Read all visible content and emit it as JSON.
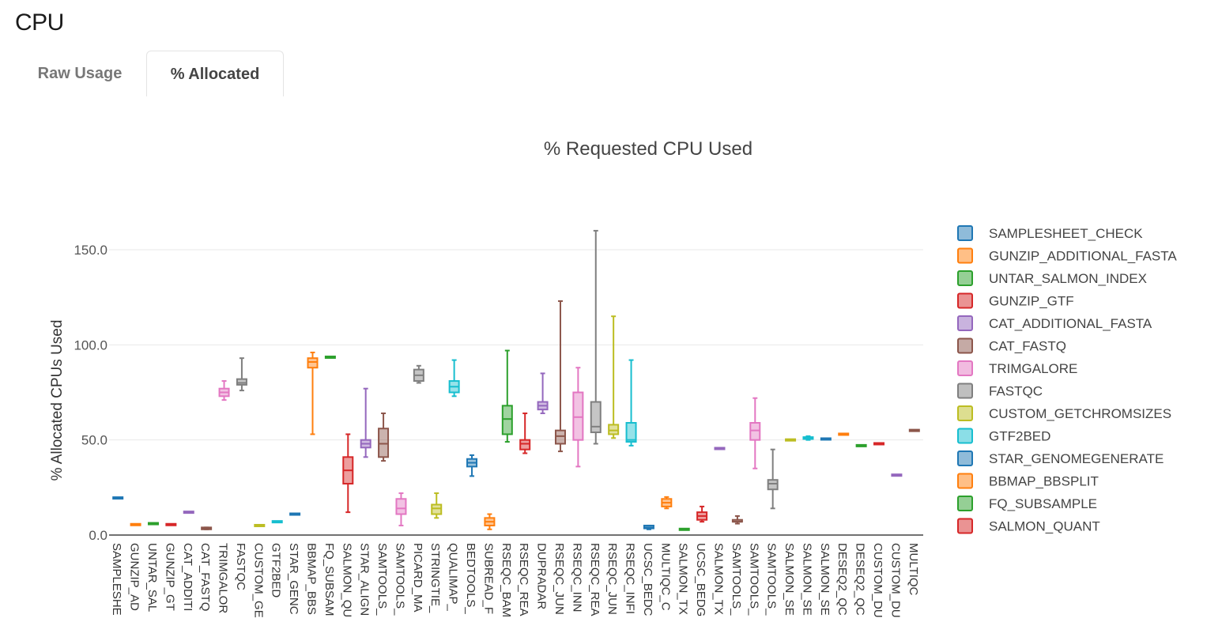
{
  "page": {
    "title": "CPU"
  },
  "tabs": [
    {
      "label": "Raw Usage",
      "active": false
    },
    {
      "label": "% Allocated",
      "active": true
    }
  ],
  "chart_data": {
    "type": "box",
    "title": "% Requested CPU Used",
    "ylabel": "% Allocated CPUs Used",
    "xlabel": "",
    "ylim": [
      0,
      160
    ],
    "yticks": [
      0.0,
      50.0,
      100.0,
      150.0
    ],
    "ytick_labels": [
      "0.0",
      "50.0",
      "100.0",
      "150.0"
    ],
    "grid": true,
    "legend_position": "right",
    "legend": [
      {
        "name": "SAMPLESHEET_CHECK",
        "color": "#1f77b4"
      },
      {
        "name": "GUNZIP_ADDITIONAL_FASTA",
        "color": "#ff7f0e"
      },
      {
        "name": "UNTAR_SALMON_INDEX",
        "color": "#2ca02c"
      },
      {
        "name": "GUNZIP_GTF",
        "color": "#d62728"
      },
      {
        "name": "CAT_ADDITIONAL_FASTA",
        "color": "#9467bd"
      },
      {
        "name": "CAT_FASTQ",
        "color": "#8c564b"
      },
      {
        "name": "TRIMGALORE",
        "color": "#e377c2"
      },
      {
        "name": "FASTQC",
        "color": "#7f7f7f"
      },
      {
        "name": "CUSTOM_GETCHROMSIZES",
        "color": "#bcbd22"
      },
      {
        "name": "GTF2BED",
        "color": "#17becf"
      },
      {
        "name": "STAR_GENOMEGENERATE",
        "color": "#1f77b4"
      },
      {
        "name": "BBMAP_BBSPLIT",
        "color": "#ff7f0e"
      },
      {
        "name": "FQ_SUBSAMPLE",
        "color": "#2ca02c"
      },
      {
        "name": "SALMON_QUANT",
        "color": "#d62728"
      }
    ],
    "boxes": [
      {
        "label": "SAMPLESHE",
        "color": "#1f77b4",
        "min": 19.5,
        "q1": 19.5,
        "median": 19.5,
        "q3": 19.5,
        "max": 19.5
      },
      {
        "label": "GUNZIP_AD",
        "color": "#ff7f0e",
        "min": 5.5,
        "q1": 5.5,
        "median": 5.5,
        "q3": 5.5,
        "max": 5.5
      },
      {
        "label": "UNTAR_SAL",
        "color": "#2ca02c",
        "min": 6,
        "q1": 6,
        "median": 6,
        "q3": 6,
        "max": 6
      },
      {
        "label": "GUNZIP_GT",
        "color": "#d62728",
        "min": 5.5,
        "q1": 5.5,
        "median": 5.5,
        "q3": 5.5,
        "max": 5.5
      },
      {
        "label": "CAT_ADDITI",
        "color": "#9467bd",
        "min": 12,
        "q1": 12,
        "median": 12,
        "q3": 12,
        "max": 12
      },
      {
        "label": "CAT_FASTQ",
        "color": "#8c564b",
        "min": 3,
        "q1": 3,
        "median": 3.5,
        "q3": 4,
        "max": 4
      },
      {
        "label": "TRIMGALOR",
        "color": "#e377c2",
        "min": 71,
        "q1": 73,
        "median": 75,
        "q3": 77,
        "max": 81
      },
      {
        "label": "FASTQC",
        "color": "#7f7f7f",
        "min": 76,
        "q1": 79,
        "median": 80,
        "q3": 82,
        "max": 93
      },
      {
        "label": "CUSTOM_GE",
        "color": "#bcbd22",
        "min": 5,
        "q1": 5,
        "median": 5,
        "q3": 5,
        "max": 5
      },
      {
        "label": "GTF2BED",
        "color": "#17becf",
        "min": 7,
        "q1": 7,
        "median": 7,
        "q3": 7,
        "max": 7
      },
      {
        "label": "STAR_GENC",
        "color": "#1f77b4",
        "min": 11,
        "q1": 11,
        "median": 11,
        "q3": 11,
        "max": 11
      },
      {
        "label": "BBMAP_BBS",
        "color": "#ff7f0e",
        "min": 53,
        "q1": 88,
        "median": 91,
        "q3": 93,
        "max": 96
      },
      {
        "label": "FQ_SUBSAM",
        "color": "#2ca02c",
        "min": 93.5,
        "q1": 93.5,
        "median": 93.5,
        "q3": 93.5,
        "max": 93.5
      },
      {
        "label": "SALMON_QU",
        "color": "#d62728",
        "min": 12,
        "q1": 27,
        "median": 34,
        "q3": 41,
        "max": 53
      },
      {
        "label": "STAR_ALIGN",
        "color": "#9467bd",
        "min": 41,
        "q1": 46,
        "median": 48,
        "q3": 50,
        "max": 77
      },
      {
        "label": "SAMTOOLS_",
        "color": "#8c564b",
        "min": 39,
        "q1": 41,
        "median": 48,
        "q3": 56,
        "max": 64
      },
      {
        "label": "SAMTOOLS_",
        "color": "#e377c2",
        "min": 5,
        "q1": 11,
        "median": 14,
        "q3": 19,
        "max": 22
      },
      {
        "label": "PICARD_MA",
        "color": "#7f7f7f",
        "min": 80,
        "q1": 81,
        "median": 84,
        "q3": 87,
        "max": 89
      },
      {
        "label": "STRINGTIE_",
        "color": "#bcbd22",
        "min": 9,
        "q1": 11,
        "median": 14,
        "q3": 16,
        "max": 22
      },
      {
        "label": "QUALIMAP_",
        "color": "#17becf",
        "min": 73,
        "q1": 75,
        "median": 78,
        "q3": 81,
        "max": 92
      },
      {
        "label": "BEDTOOLS_",
        "color": "#1f77b4",
        "min": 31,
        "q1": 36,
        "median": 38,
        "q3": 40,
        "max": 42
      },
      {
        "label": "SUBREAD_F",
        "color": "#ff7f0e",
        "min": 3,
        "q1": 5,
        "median": 7,
        "q3": 9,
        "max": 11
      },
      {
        "label": "RSEQC_BAM",
        "color": "#2ca02c",
        "min": 49,
        "q1": 53,
        "median": 61,
        "q3": 68,
        "max": 97
      },
      {
        "label": "RSEQC_REA",
        "color": "#d62728",
        "min": 43,
        "q1": 45,
        "median": 48,
        "q3": 50,
        "max": 64
      },
      {
        "label": "DUPRADAR",
        "color": "#9467bd",
        "min": 64,
        "q1": 66,
        "median": 68,
        "q3": 70,
        "max": 85
      },
      {
        "label": "RSEQC_JUN",
        "color": "#8c564b",
        "min": 44,
        "q1": 48,
        "median": 52,
        "q3": 55,
        "max": 123
      },
      {
        "label": "RSEQC_INN",
        "color": "#e377c2",
        "min": 36,
        "q1": 50,
        "median": 62,
        "q3": 75,
        "max": 88
      },
      {
        "label": "RSEQC_REA",
        "color": "#7f7f7f",
        "min": 48,
        "q1": 54,
        "median": 57,
        "q3": 70,
        "max": 160
      },
      {
        "label": "RSEQC_JUN",
        "color": "#bcbd22",
        "min": 51,
        "q1": 53,
        "median": 55,
        "q3": 58,
        "max": 115
      },
      {
        "label": "RSEQC_INFI",
        "color": "#17becf",
        "min": 47,
        "q1": 49,
        "median": 50,
        "q3": 59,
        "max": 92
      },
      {
        "label": "UCSC_BEDC",
        "color": "#1f77b4",
        "min": 3,
        "q1": 3.5,
        "median": 4,
        "q3": 5,
        "max": 5
      },
      {
        "label": "MULTIQC_C",
        "color": "#ff7f0e",
        "min": 14,
        "q1": 15,
        "median": 17,
        "q3": 19,
        "max": 20
      },
      {
        "label": "SALMON_TX",
        "color": "#2ca02c",
        "min": 3,
        "q1": 3,
        "median": 3,
        "q3": 3,
        "max": 3
      },
      {
        "label": "UCSC_BEDG",
        "color": "#d62728",
        "min": 7,
        "q1": 8,
        "median": 10,
        "q3": 12,
        "max": 15
      },
      {
        "label": "SALMON_TX",
        "color": "#9467bd",
        "min": 45.5,
        "q1": 45.5,
        "median": 45.5,
        "q3": 45.5,
        "max": 45.5
      },
      {
        "label": "SAMTOOLS_",
        "color": "#8c564b",
        "min": 6,
        "q1": 7,
        "median": 7,
        "q3": 8,
        "max": 10
      },
      {
        "label": "SAMTOOLS_",
        "color": "#e377c2",
        "min": 35,
        "q1": 50,
        "median": 55,
        "q3": 59,
        "max": 72
      },
      {
        "label": "SAMTOOLS_",
        "color": "#7f7f7f",
        "min": 14,
        "q1": 24,
        "median": 27,
        "q3": 29,
        "max": 45
      },
      {
        "label": "SALMON_SE",
        "color": "#bcbd22",
        "min": 50,
        "q1": 50,
        "median": 50,
        "q3": 50,
        "max": 50
      },
      {
        "label": "SALMON_SE",
        "color": "#17becf",
        "min": 50,
        "q1": 50.5,
        "median": 51,
        "q3": 51.5,
        "max": 52
      },
      {
        "label": "SALMON_SE",
        "color": "#1f77b4",
        "min": 50.5,
        "q1": 50.5,
        "median": 50.5,
        "q3": 50.5,
        "max": 50.5
      },
      {
        "label": "DESEQ2_QC",
        "color": "#ff7f0e",
        "min": 53,
        "q1": 53,
        "median": 53,
        "q3": 53,
        "max": 53
      },
      {
        "label": "DESEQ2_QC",
        "color": "#2ca02c",
        "min": 47,
        "q1": 47,
        "median": 47,
        "q3": 47,
        "max": 47
      },
      {
        "label": "CUSTOM_DU",
        "color": "#d62728",
        "min": 48,
        "q1": 48,
        "median": 48,
        "q3": 48,
        "max": 48
      },
      {
        "label": "CUSTOM_DU",
        "color": "#9467bd",
        "min": 31.5,
        "q1": 31.5,
        "median": 31.5,
        "q3": 31.5,
        "max": 31.5
      },
      {
        "label": "MULTIQC",
        "color": "#8c564b",
        "min": 55,
        "q1": 55,
        "median": 55,
        "q3": 55,
        "max": 55
      }
    ]
  }
}
